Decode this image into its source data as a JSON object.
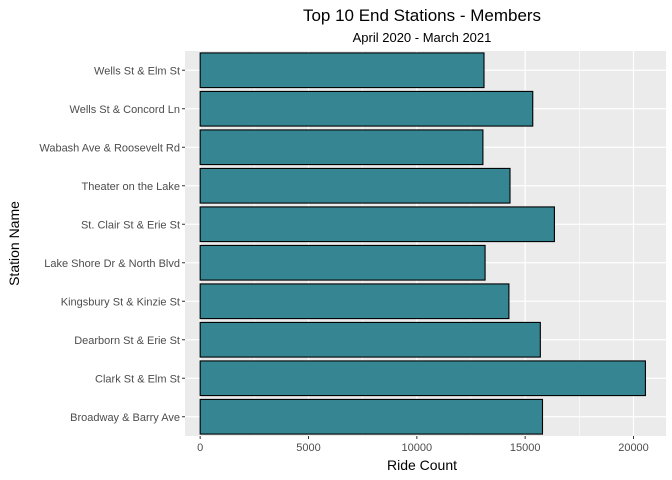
{
  "chart_data": {
    "type": "bar",
    "orientation": "horizontal",
    "title": "Top 10 End Stations - Members",
    "subtitle": "April 2020 - March 2021",
    "xlabel": "Ride Count",
    "ylabel": "Station Name",
    "categories": [
      "Broadway & Barry Ave",
      "Clark St & Elm St",
      "Dearborn St & Erie St",
      "Kingsbury St & Kinzie St",
      "Lake Shore Dr & North Blvd",
      "St. Clair St & Erie St",
      "Theater on the Lake",
      "Wabash Ave & Roosevelt Rd",
      "Wells St & Concord Ln",
      "Wells St & Elm St"
    ],
    "values": [
      15800,
      20550,
      15700,
      14250,
      13150,
      16350,
      14300,
      13050,
      15350,
      13100
    ],
    "xlim": [
      -700,
      21500
    ],
    "xticks": [
      0,
      5000,
      10000,
      15000,
      20000
    ],
    "xtick_labels": [
      "0",
      "5000",
      "10000",
      "15000",
      "20000"
    ],
    "grid": true,
    "colors": {
      "panel_bg": "#ebebeb",
      "grid_major": "#ffffff",
      "bar_fill": "#358593",
      "bar_stroke": "#000000",
      "tick": "#333333"
    }
  }
}
